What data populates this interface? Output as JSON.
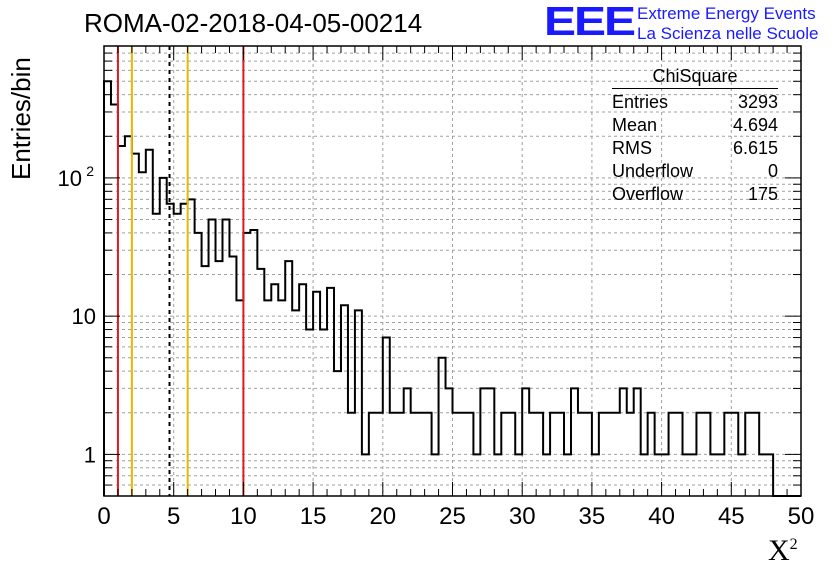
{
  "header": {
    "run_title": "ROMA-02-2018-04-05-00214",
    "logo_text": "EEE",
    "logo_line1": "Extreme Energy Events",
    "logo_line2": "La Scienza nelle Scuole"
  },
  "stats": {
    "title": "ChiSquare",
    "rows": [
      {
        "label": "Entries",
        "value": "3293"
      },
      {
        "label": "Mean",
        "value": "4.694"
      },
      {
        "label": "RMS",
        "value": "6.615"
      },
      {
        "label": "Underflow",
        "value": "0"
      },
      {
        "label": "Overflow",
        "value": "175"
      }
    ]
  },
  "chart_data": {
    "type": "bar",
    "title": "ROMA-02-2018-04-05-00214",
    "xlabel": "X",
    "xlabel_sup": "2",
    "ylabel": "Entries/bin",
    "xlim": [
      0,
      50
    ],
    "ylim": [
      0.5,
      900
    ],
    "y_scale": "log",
    "grid": true,
    "bin_width": 0.5,
    "x_ticks": [
      0,
      5,
      10,
      15,
      20,
      25,
      30,
      35,
      40,
      45,
      50
    ],
    "y_ticks": [
      {
        "value": 1,
        "label": "1"
      },
      {
        "value": 10,
        "label": "10"
      },
      {
        "value": 100,
        "label": "10",
        "sup": "2"
      }
    ],
    "values": [
      500,
      340,
      170,
      200,
      150,
      110,
      160,
      55,
      100,
      65,
      55,
      65,
      70,
      40,
      23,
      50,
      25,
      50,
      27,
      13,
      40,
      42,
      22,
      13,
      17,
      13,
      25,
      11,
      17,
      8,
      15,
      8,
      16,
      4,
      12,
      2,
      11,
      1,
      2,
      2,
      7,
      2,
      2,
      3,
      2,
      2,
      2,
      1,
      5,
      3,
      2,
      2,
      2,
      1,
      3,
      3,
      1,
      2,
      2,
      1,
      3,
      2,
      2,
      1,
      2,
      2,
      1,
      3,
      2,
      2,
      1,
      2,
      2,
      2,
      3,
      2,
      3,
      1,
      2,
      1,
      1,
      2,
      2,
      1,
      1,
      2,
      2,
      1,
      1,
      2,
      2,
      1,
      2,
      2,
      1,
      1,
      0,
      0,
      0,
      0
    ],
    "vertical_lines": [
      {
        "x": 1.0,
        "color": "#e0191e",
        "style": "solid"
      },
      {
        "x": 2.0,
        "color": "#e6b800",
        "style": "solid"
      },
      {
        "x": 4.7,
        "color": "#000000",
        "style": "dashed"
      },
      {
        "x": 6.0,
        "color": "#e6b800",
        "style": "solid"
      },
      {
        "x": 10.0,
        "color": "#e0191e",
        "style": "solid"
      }
    ],
    "legend_placement": "top-right"
  }
}
